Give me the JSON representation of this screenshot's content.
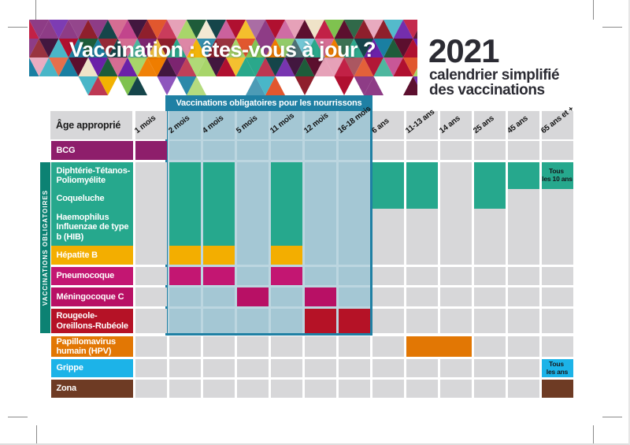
{
  "page": {
    "banner_title": "Vaccination : êtes-vous à jour ?",
    "year": "2021",
    "subtitle_line1": "calendrier simplifié",
    "subtitle_line2": "des vaccinations"
  },
  "table": {
    "corner_label": "Âge approprié",
    "infant_box_title": "Vaccinations obligatoires pour les nourrissons",
    "side_label": "VACCINATIONS OBLIGATOIRES",
    "colors": {
      "box_frame": "#1f80a4",
      "box_interior_grid": "#bcd6e0",
      "box_empty_cell": "#a4c7d4",
      "empty_cell": "#d7d7d9",
      "header_cell": "#d7d7d9"
    }
  },
  "chart_data": {
    "type": "table",
    "title": "Vaccination : êtes-vous à jour ? — 2021 calendrier simplifié des vaccinations",
    "columns": [
      "1 mois",
      "2 mois",
      "4 mois",
      "5 mois",
      "11 mois",
      "12 mois",
      "16-18 mois",
      "6 ans",
      "11-13 ans",
      "14 ans",
      "25 ans",
      "45 ans",
      "65 ans et +"
    ],
    "infant_mandatory_columns": [
      "2 mois",
      "4 mois",
      "5 mois",
      "11 mois",
      "12 mois",
      "16-18 mois"
    ],
    "rows": [
      {
        "label": "BCG",
        "color": "#8e1e6b",
        "mandatory_infant": false,
        "doses": [
          {
            "col": "1 mois"
          }
        ]
      },
      {
        "label": "Diphtérie-Tétanos-Poliomyélite",
        "color": "#26a88d",
        "mandatory_infant": true,
        "doses": [
          {
            "col": "2 mois"
          },
          {
            "col": "4 mois"
          },
          {
            "col": "11 mois"
          },
          {
            "col": "6 ans"
          },
          {
            "col": "11-13 ans"
          },
          {
            "col": "25 ans"
          },
          {
            "col": "45 ans"
          },
          {
            "col": "65 ans et +",
            "note": "Tous les 10 ans"
          }
        ]
      },
      {
        "label": "Coqueluche",
        "color": "#26a88d",
        "mandatory_infant": true,
        "doses": [
          {
            "col": "2 mois"
          },
          {
            "col": "4 mois"
          },
          {
            "col": "11 mois"
          },
          {
            "col": "6 ans"
          },
          {
            "col": "11-13 ans"
          },
          {
            "col": "25 ans"
          }
        ]
      },
      {
        "label": "Haemophilus Influenzae de type b (HIB)",
        "color": "#26a88d",
        "mandatory_infant": true,
        "doses": [
          {
            "col": "2 mois"
          },
          {
            "col": "4 mois"
          },
          {
            "col": "11 mois"
          }
        ]
      },
      {
        "label": "Hépatite B",
        "color": "#f3ae00",
        "mandatory_infant": true,
        "doses": [
          {
            "col": "2 mois"
          },
          {
            "col": "4 mois"
          },
          {
            "col": "11 mois"
          }
        ]
      },
      {
        "label": "Pneumocoque",
        "color": "#c31672",
        "mandatory_infant": true,
        "doses": [
          {
            "col": "2 mois"
          },
          {
            "col": "4 mois"
          },
          {
            "col": "11 mois"
          }
        ]
      },
      {
        "label": "Méningocoque C",
        "color": "#b81065",
        "mandatory_infant": true,
        "doses": [
          {
            "col": "5 mois"
          },
          {
            "col": "12 mois"
          }
        ]
      },
      {
        "label": "Rougeole-Oreillons-Rubéole",
        "color": "#b51226",
        "mandatory_infant": true,
        "doses": [
          {
            "col": "12 mois"
          },
          {
            "col": "16-18 mois"
          }
        ]
      },
      {
        "label": "Papillomavirus humain (HPV)",
        "color": "#e27704",
        "mandatory_infant": false,
        "doses": [
          {
            "col": "11-13 ans",
            "span": 2
          }
        ]
      },
      {
        "label": "Grippe",
        "color": "#1cb3e8",
        "mandatory_infant": false,
        "doses": [
          {
            "col": "65 ans et +",
            "note": "Tous les ans"
          }
        ]
      },
      {
        "label": "Zona",
        "color": "#6e3b24",
        "mandatory_infant": false,
        "doses": [
          {
            "col": "65 ans et +"
          }
        ]
      }
    ]
  }
}
